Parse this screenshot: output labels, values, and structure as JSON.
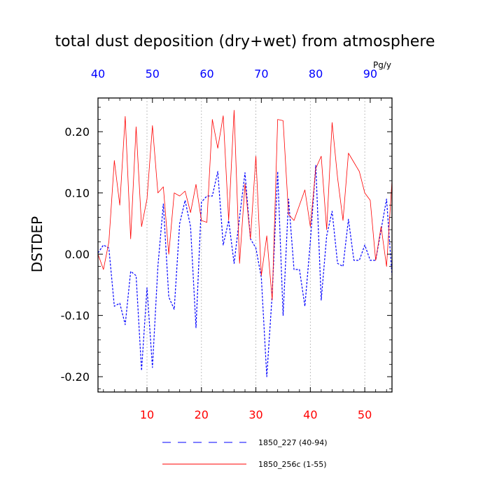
{
  "chart_data": {
    "type": "line",
    "title": "total dust deposition (dry+wet) from atmosphere",
    "ylabel": "DSTDEP",
    "units": "Pg/y",
    "ylim": [
      -0.225,
      0.255
    ],
    "y_ticks": [
      -0.2,
      -0.1,
      0.0,
      0.1,
      0.2
    ],
    "y_tick_labels": [
      "-0.20",
      "-0.10",
      "0.00",
      "0.10",
      "0.20"
    ],
    "bottom_axis": {
      "range": [
        1,
        55
      ],
      "ticks": [
        10,
        20,
        30,
        40,
        50
      ],
      "tick_labels": [
        "10",
        "20",
        "30",
        "40",
        "50"
      ],
      "color": "#ff0000"
    },
    "top_axis": {
      "range": [
        40,
        94
      ],
      "ticks": [
        40,
        50,
        60,
        70,
        80,
        90
      ],
      "tick_labels": [
        "40",
        "50",
        "60",
        "70",
        "80",
        "90"
      ],
      "color": "#0000ff"
    },
    "grid": "vertical dotted at major ticks",
    "series": [
      {
        "name": "1850_227 (40-94)",
        "color": "#0000ff",
        "style": "dashed",
        "axis": "top",
        "x": [
          40,
          41,
          42,
          43,
          44,
          45,
          46,
          47,
          48,
          49,
          50,
          51,
          52,
          53,
          54,
          55,
          56,
          57,
          58,
          59,
          60,
          61,
          62,
          63,
          64,
          65,
          66,
          67,
          68,
          69,
          70,
          71,
          72,
          73,
          74,
          75,
          76,
          77,
          78,
          79,
          80,
          81,
          82,
          83,
          84,
          85,
          86,
          87,
          88,
          89,
          90,
          91,
          92,
          93,
          94
        ],
        "values": [
          0.002,
          0.015,
          0.01,
          -0.085,
          -0.08,
          -0.115,
          -0.028,
          -0.035,
          -0.19,
          -0.055,
          -0.185,
          -0.02,
          0.082,
          -0.07,
          -0.09,
          0.05,
          0.088,
          0.045,
          -0.12,
          0.085,
          0.095,
          0.095,
          0.135,
          0.015,
          0.055,
          -0.015,
          0.06,
          0.133,
          0.025,
          0.01,
          -0.038,
          -0.2,
          -0.065,
          0.135,
          -0.1,
          0.09,
          -0.025,
          -0.025,
          -0.085,
          0.02,
          0.145,
          -0.075,
          0.03,
          0.07,
          -0.015,
          -0.02,
          0.057,
          -0.01,
          -0.01,
          0.015,
          -0.01,
          -0.01,
          0.04,
          0.09,
          -0.035
        ]
      },
      {
        "name": "1850_256c (1-55)",
        "color": "#ff0000",
        "style": "solid",
        "axis": "bottom",
        "x": [
          1,
          2,
          3,
          4,
          5,
          6,
          7,
          8,
          9,
          10,
          11,
          12,
          13,
          14,
          15,
          16,
          17,
          18,
          19,
          20,
          21,
          22,
          23,
          24,
          25,
          26,
          27,
          28,
          29,
          30,
          31,
          32,
          33,
          34,
          35,
          36,
          37,
          38,
          39,
          40,
          41,
          42,
          43,
          44,
          45,
          46,
          47,
          48,
          49,
          50,
          51,
          52,
          53,
          54,
          55
        ],
        "values": [
          0.0,
          -0.025,
          0.02,
          0.153,
          0.08,
          0.225,
          0.025,
          0.208,
          0.045,
          0.09,
          0.21,
          0.1,
          0.11,
          0.0,
          0.1,
          0.095,
          0.103,
          0.068,
          0.114,
          0.055,
          0.052,
          0.22,
          0.173,
          0.226,
          0.055,
          0.235,
          -0.015,
          0.115,
          0.025,
          0.16,
          -0.035,
          0.03,
          -0.075,
          0.22,
          0.218,
          0.065,
          0.055,
          0.08,
          0.105,
          0.045,
          0.14,
          0.16,
          0.04,
          0.215,
          0.125,
          0.055,
          0.165,
          0.15,
          0.135,
          0.1,
          0.088,
          -0.01,
          0.045,
          -0.02,
          0.12
        ]
      }
    ],
    "legend": {
      "position": "bottom",
      "entries": [
        {
          "label": "1850_227 (40-94)",
          "color": "#0000ff",
          "style": "dashed"
        },
        {
          "label": "1850_256c (1-55)",
          "color": "#ff0000",
          "style": "solid"
        }
      ]
    }
  }
}
